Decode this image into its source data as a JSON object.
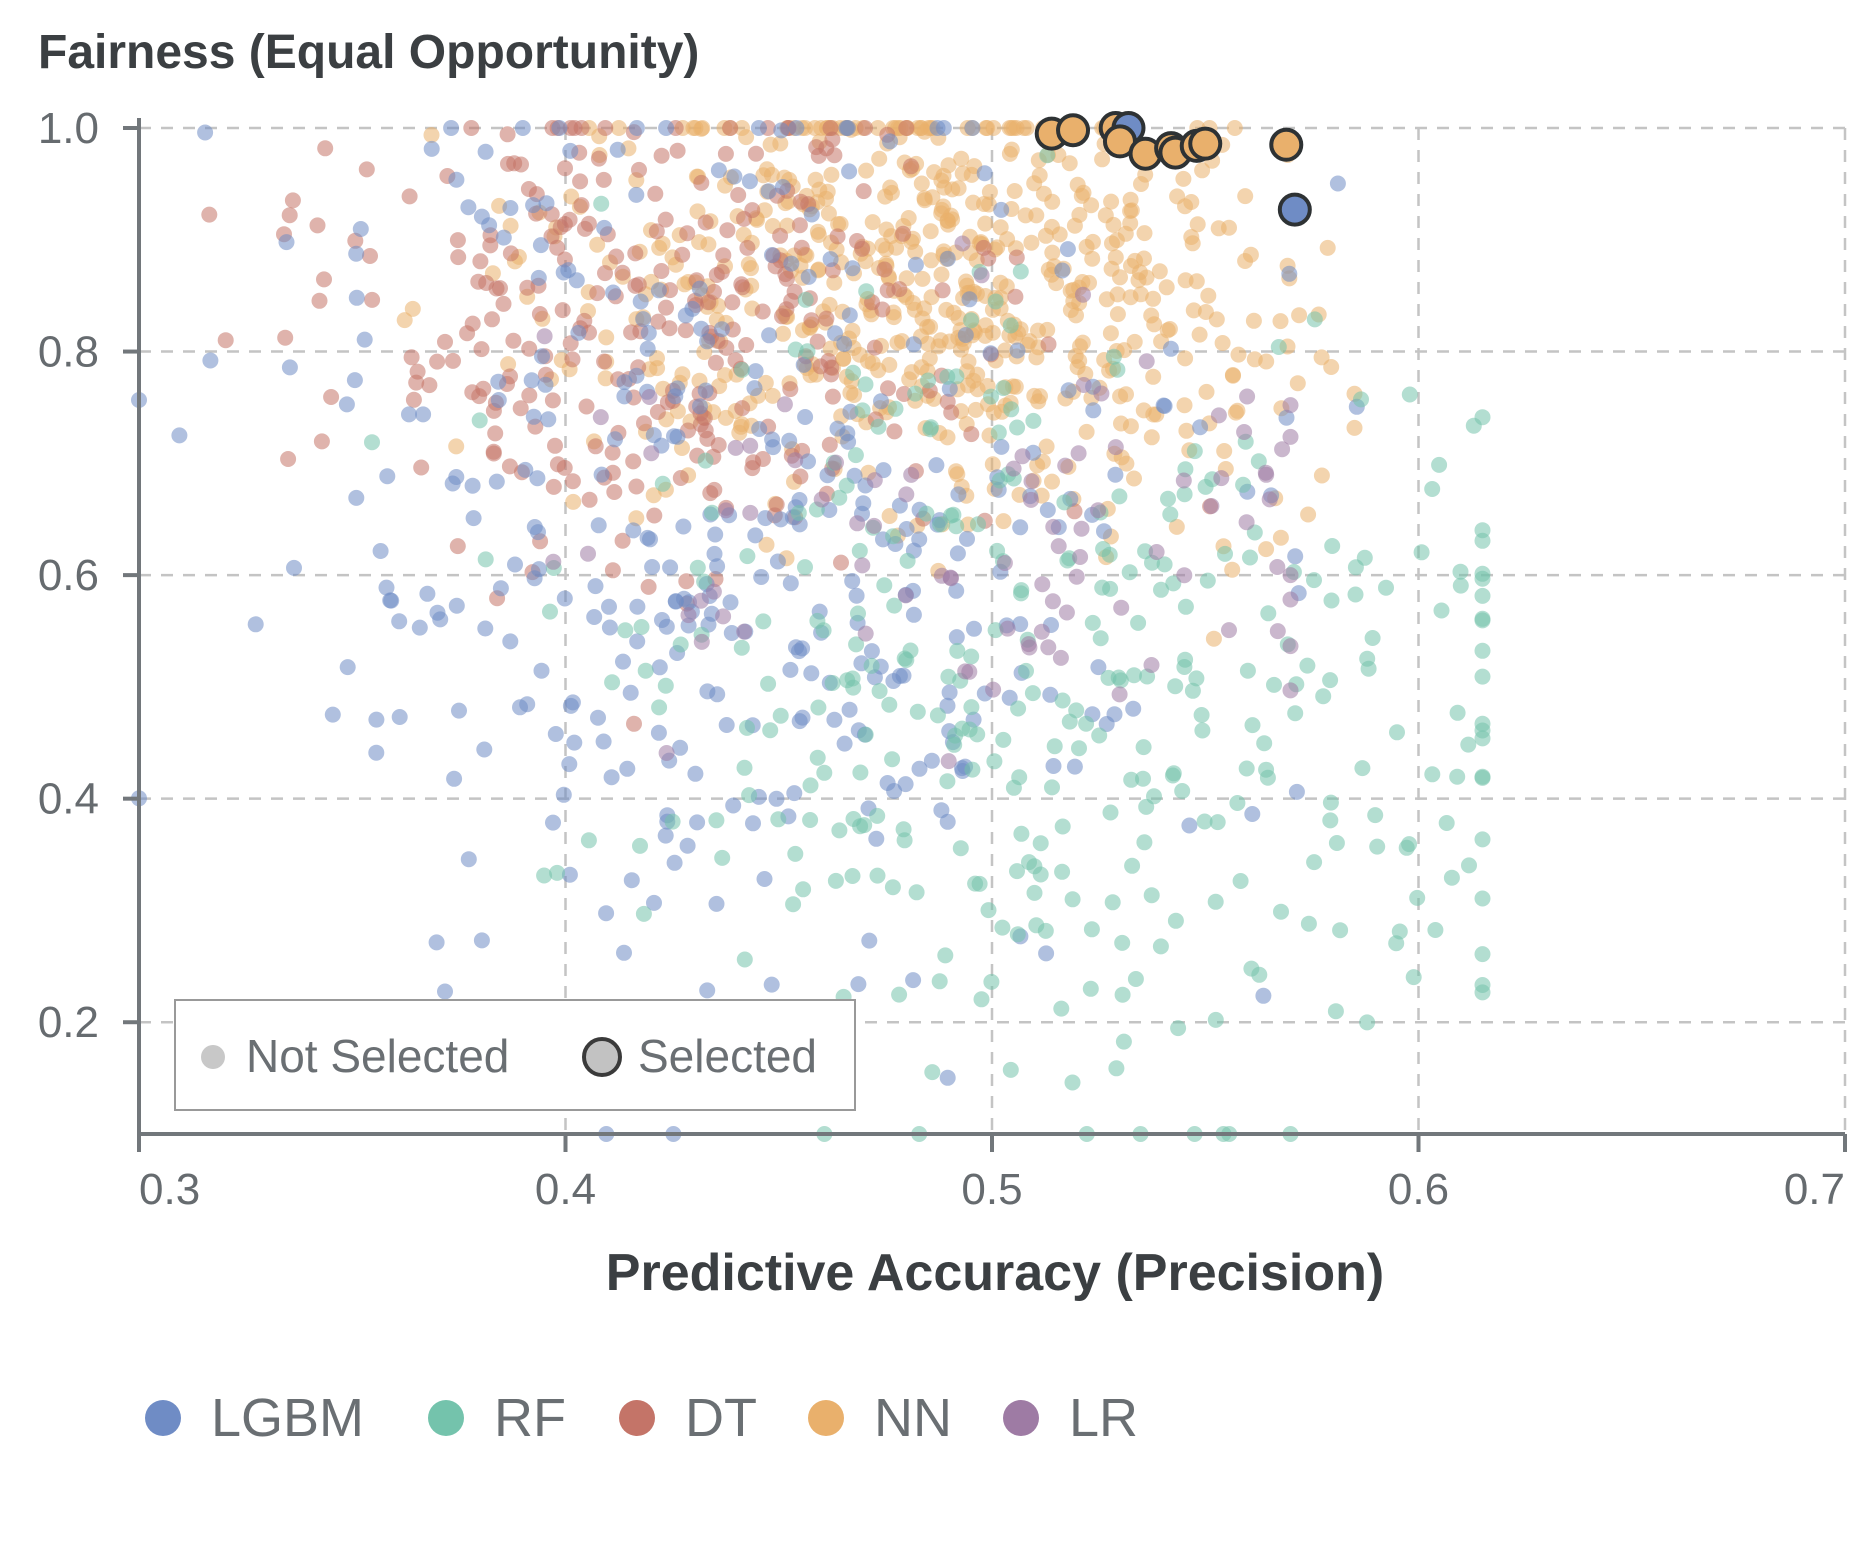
{
  "chart_data": {
    "type": "scatter",
    "title": "",
    "ylabel": "Fairness (Equal Opportunity)",
    "xlabel": "Predictive Accuracy (Precision)",
    "xlim": [
      0.3,
      0.7
    ],
    "ylim": [
      0.1,
      1.0
    ],
    "x_ticks": [
      "0.3",
      "0.4",
      "0.5",
      "0.6",
      "0.7"
    ],
    "y_ticks": [
      "0.2",
      "0.4",
      "0.6",
      "0.8",
      "1.0"
    ],
    "grid": true,
    "selection_legend": {
      "not_selected": "Not Selected",
      "selected": "Selected"
    },
    "series": [
      {
        "name": "LGBM",
        "color": "#6f8cc5"
      },
      {
        "name": "RF",
        "color": "#74c3ac"
      },
      {
        "name": "DT",
        "color": "#c47468"
      },
      {
        "name": "NN",
        "color": "#e9b06c"
      },
      {
        "name": "LR",
        "color": "#9e7ba4"
      }
    ],
    "selected_points": [
      {
        "series": "NN",
        "x": 0.514,
        "y": 0.995
      },
      {
        "series": "NN",
        "x": 0.519,
        "y": 0.998
      },
      {
        "series": "NN",
        "x": 0.529,
        "y": 1.0
      },
      {
        "series": "LGBM",
        "x": 0.532,
        "y": 1.0
      },
      {
        "series": "NN",
        "x": 0.53,
        "y": 0.988
      },
      {
        "series": "NN",
        "x": 0.536,
        "y": 0.977
      },
      {
        "series": "NN",
        "x": 0.542,
        "y": 0.982
      },
      {
        "series": "NN",
        "x": 0.543,
        "y": 0.978
      },
      {
        "series": "NN",
        "x": 0.548,
        "y": 0.984
      },
      {
        "series": "NN",
        "x": 0.55,
        "y": 0.986
      },
      {
        "series": "NN",
        "x": 0.569,
        "y": 0.985
      },
      {
        "series": "LGBM",
        "x": 0.571,
        "y": 0.927
      }
    ]
  }
}
